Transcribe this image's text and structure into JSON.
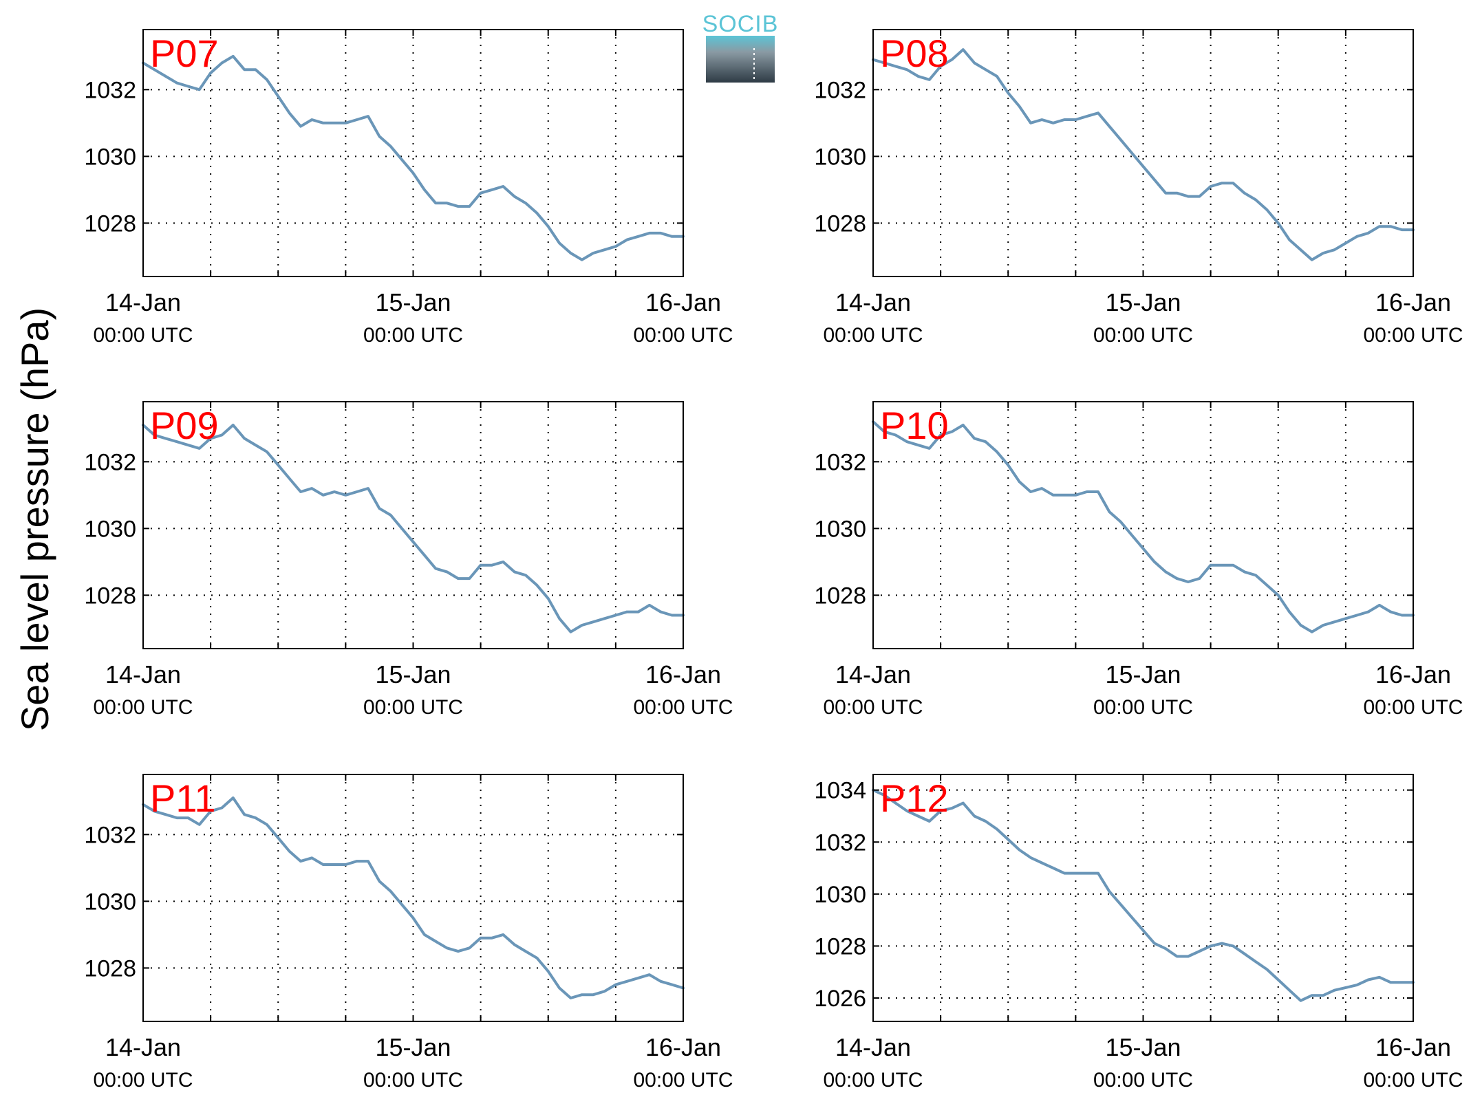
{
  "figure": {
    "ylabel": "Sea level pressure (hPa)",
    "logo_text": "SOCIB",
    "line_color": "#6a96b8",
    "panel_label_color": "#ff0000",
    "x_tick_dates": [
      "14-Jan",
      "15-Jan",
      "16-Jan"
    ],
    "x_tick_times": [
      "00:00 UTC",
      "00:00 UTC",
      "00:00 UTC"
    ]
  },
  "chart_data": [
    {
      "type": "line",
      "panel_label": "P07",
      "x_unit": "hours since 14-Jan 00:00 UTC",
      "xlim": [
        0,
        48
      ],
      "ylim": [
        1026.4,
        1033.8
      ],
      "yticks": [
        1028,
        1030,
        1032
      ],
      "grid": true,
      "series": [
        {
          "x": [
            0,
            1,
            2,
            3,
            4,
            5,
            6,
            7,
            8,
            9,
            10,
            11,
            12,
            13,
            14,
            15,
            16,
            17,
            18,
            19,
            20,
            21,
            22,
            23,
            24,
            25,
            26,
            27,
            28,
            29,
            30,
            31,
            32,
            33,
            34,
            35,
            36,
            37,
            38,
            39,
            40,
            41,
            42,
            43,
            44,
            45,
            46,
            47,
            48
          ],
          "y": [
            1032.8,
            1032.6,
            1032.4,
            1032.2,
            1032.1,
            1032.0,
            1032.5,
            1032.8,
            1033.0,
            1032.6,
            1032.6,
            1032.3,
            1031.8,
            1031.3,
            1030.9,
            1031.1,
            1031.0,
            1031.0,
            1031.0,
            1031.1,
            1031.2,
            1030.6,
            1030.3,
            1029.9,
            1029.5,
            1029.0,
            1028.6,
            1028.6,
            1028.5,
            1028.5,
            1028.9,
            1029.0,
            1029.1,
            1028.8,
            1028.6,
            1028.3,
            1027.9,
            1027.4,
            1027.1,
            1026.9,
            1027.1,
            1027.2,
            1027.3,
            1027.5,
            1027.6,
            1027.7,
            1027.7,
            1027.6,
            1027.6
          ]
        }
      ]
    },
    {
      "type": "line",
      "panel_label": "P08",
      "x_unit": "hours since 14-Jan 00:00 UTC",
      "xlim": [
        0,
        48
      ],
      "ylim": [
        1026.4,
        1033.8
      ],
      "yticks": [
        1028,
        1030,
        1032
      ],
      "grid": true,
      "series": [
        {
          "x": [
            0,
            1,
            2,
            3,
            4,
            5,
            6,
            7,
            8,
            9,
            10,
            11,
            12,
            13,
            14,
            15,
            16,
            17,
            18,
            19,
            20,
            21,
            22,
            23,
            24,
            25,
            26,
            27,
            28,
            29,
            30,
            31,
            32,
            33,
            34,
            35,
            36,
            37,
            38,
            39,
            40,
            41,
            42,
            43,
            44,
            45,
            46,
            47,
            48
          ],
          "y": [
            1032.9,
            1032.8,
            1032.7,
            1032.6,
            1032.4,
            1032.3,
            1032.7,
            1032.9,
            1033.2,
            1032.8,
            1032.6,
            1032.4,
            1031.9,
            1031.5,
            1031.0,
            1031.1,
            1031.0,
            1031.1,
            1031.1,
            1031.2,
            1031.3,
            1030.9,
            1030.5,
            1030.1,
            1029.7,
            1029.3,
            1028.9,
            1028.9,
            1028.8,
            1028.8,
            1029.1,
            1029.2,
            1029.2,
            1028.9,
            1028.7,
            1028.4,
            1028.0,
            1027.5,
            1027.2,
            1026.9,
            1027.1,
            1027.2,
            1027.4,
            1027.6,
            1027.7,
            1027.9,
            1027.9,
            1027.8,
            1027.8
          ]
        }
      ]
    },
    {
      "type": "line",
      "panel_label": "P09",
      "x_unit": "hours since 14-Jan 00:00 UTC",
      "xlim": [
        0,
        48
      ],
      "ylim": [
        1026.4,
        1033.8
      ],
      "yticks": [
        1028,
        1030,
        1032
      ],
      "grid": true,
      "series": [
        {
          "x": [
            0,
            1,
            2,
            3,
            4,
            5,
            6,
            7,
            8,
            9,
            10,
            11,
            12,
            13,
            14,
            15,
            16,
            17,
            18,
            19,
            20,
            21,
            22,
            23,
            24,
            25,
            26,
            27,
            28,
            29,
            30,
            31,
            32,
            33,
            34,
            35,
            36,
            37,
            38,
            39,
            40,
            41,
            42,
            43,
            44,
            45,
            46,
            47,
            48
          ],
          "y": [
            1033.1,
            1032.8,
            1032.7,
            1032.6,
            1032.5,
            1032.4,
            1032.7,
            1032.8,
            1033.1,
            1032.7,
            1032.5,
            1032.3,
            1031.9,
            1031.5,
            1031.1,
            1031.2,
            1031.0,
            1031.1,
            1031.0,
            1031.1,
            1031.2,
            1030.6,
            1030.4,
            1030.0,
            1029.6,
            1029.2,
            1028.8,
            1028.7,
            1028.5,
            1028.5,
            1028.9,
            1028.9,
            1029.0,
            1028.7,
            1028.6,
            1028.3,
            1027.9,
            1027.3,
            1026.9,
            1027.1,
            1027.2,
            1027.3,
            1027.4,
            1027.5,
            1027.5,
            1027.7,
            1027.5,
            1027.4,
            1027.4
          ]
        }
      ]
    },
    {
      "type": "line",
      "panel_label": "P10",
      "x_unit": "hours since 14-Jan 00:00 UTC",
      "xlim": [
        0,
        48
      ],
      "ylim": [
        1026.4,
        1033.8
      ],
      "yticks": [
        1028,
        1030,
        1032
      ],
      "grid": true,
      "series": [
        {
          "x": [
            0,
            1,
            2,
            3,
            4,
            5,
            6,
            7,
            8,
            9,
            10,
            11,
            12,
            13,
            14,
            15,
            16,
            17,
            18,
            19,
            20,
            21,
            22,
            23,
            24,
            25,
            26,
            27,
            28,
            29,
            30,
            31,
            32,
            33,
            34,
            35,
            36,
            37,
            38,
            39,
            40,
            41,
            42,
            43,
            44,
            45,
            46,
            47,
            48
          ],
          "y": [
            1033.2,
            1032.9,
            1032.8,
            1032.6,
            1032.5,
            1032.4,
            1032.8,
            1032.9,
            1033.1,
            1032.7,
            1032.6,
            1032.3,
            1031.9,
            1031.4,
            1031.1,
            1031.2,
            1031.0,
            1031.0,
            1031.0,
            1031.1,
            1031.1,
            1030.5,
            1030.2,
            1029.8,
            1029.4,
            1029.0,
            1028.7,
            1028.5,
            1028.4,
            1028.5,
            1028.9,
            1028.9,
            1028.9,
            1028.7,
            1028.6,
            1028.3,
            1028.0,
            1027.5,
            1027.1,
            1026.9,
            1027.1,
            1027.2,
            1027.3,
            1027.4,
            1027.5,
            1027.7,
            1027.5,
            1027.4,
            1027.4
          ]
        }
      ]
    },
    {
      "type": "line",
      "panel_label": "P11",
      "x_unit": "hours since 14-Jan 00:00 UTC",
      "xlim": [
        0,
        48
      ],
      "ylim": [
        1026.4,
        1033.8
      ],
      "yticks": [
        1028,
        1030,
        1032
      ],
      "grid": true,
      "series": [
        {
          "x": [
            0,
            1,
            2,
            3,
            4,
            5,
            6,
            7,
            8,
            9,
            10,
            11,
            12,
            13,
            14,
            15,
            16,
            17,
            18,
            19,
            20,
            21,
            22,
            23,
            24,
            25,
            26,
            27,
            28,
            29,
            30,
            31,
            32,
            33,
            34,
            35,
            36,
            37,
            38,
            39,
            40,
            41,
            42,
            43,
            44,
            45,
            46,
            47,
            48
          ],
          "y": [
            1032.9,
            1032.7,
            1032.6,
            1032.5,
            1032.5,
            1032.3,
            1032.7,
            1032.8,
            1033.1,
            1032.6,
            1032.5,
            1032.3,
            1031.9,
            1031.5,
            1031.2,
            1031.3,
            1031.1,
            1031.1,
            1031.1,
            1031.2,
            1031.2,
            1030.6,
            1030.3,
            1029.9,
            1029.5,
            1029.0,
            1028.8,
            1028.6,
            1028.5,
            1028.6,
            1028.9,
            1028.9,
            1029.0,
            1028.7,
            1028.5,
            1028.3,
            1027.9,
            1027.4,
            1027.1,
            1027.2,
            1027.2,
            1027.3,
            1027.5,
            1027.6,
            1027.7,
            1027.8,
            1027.6,
            1027.5,
            1027.4
          ]
        }
      ]
    },
    {
      "type": "line",
      "panel_label": "P12",
      "x_unit": "hours since 14-Jan 00:00 UTC",
      "xlim": [
        0,
        48
      ],
      "ylim": [
        1025.1,
        1034.6
      ],
      "yticks": [
        1026,
        1028,
        1030,
        1032,
        1034
      ],
      "grid": true,
      "series": [
        {
          "x": [
            0,
            1,
            2,
            3,
            4,
            5,
            6,
            7,
            8,
            9,
            10,
            11,
            12,
            13,
            14,
            15,
            16,
            17,
            18,
            19,
            20,
            21,
            22,
            23,
            24,
            25,
            26,
            27,
            28,
            29,
            30,
            31,
            32,
            33,
            34,
            35,
            36,
            37,
            38,
            39,
            40,
            41,
            42,
            43,
            44,
            45,
            46,
            47,
            48
          ],
          "y": [
            1034.0,
            1033.8,
            1033.5,
            1033.2,
            1033.0,
            1032.8,
            1033.2,
            1033.3,
            1033.5,
            1033.0,
            1032.8,
            1032.5,
            1032.1,
            1031.7,
            1031.4,
            1031.2,
            1031.0,
            1030.8,
            1030.8,
            1030.8,
            1030.8,
            1030.1,
            1029.6,
            1029.1,
            1028.6,
            1028.1,
            1027.9,
            1027.6,
            1027.6,
            1027.8,
            1028.0,
            1028.1,
            1028.0,
            1027.7,
            1027.4,
            1027.1,
            1026.7,
            1026.3,
            1025.9,
            1026.1,
            1026.1,
            1026.3,
            1026.4,
            1026.5,
            1026.7,
            1026.8,
            1026.6,
            1026.6,
            1026.6
          ]
        }
      ]
    }
  ]
}
